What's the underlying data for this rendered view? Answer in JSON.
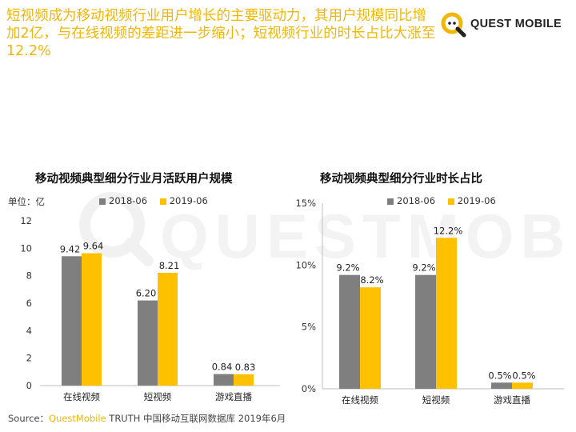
{
  "headline": "短视频成为移动视频行业用户增长的主要驱动力，其用户规模同比增加2亿，与在线视频的差距进一步缩小；短视频行业的时长占比大涨至12.2%",
  "logo": {
    "text": "QUEST MOBILE",
    "icon": "q-magnifier-logo-icon",
    "accent": "#f2b705"
  },
  "watermark": "QUESTMOBILE",
  "colors": {
    "series_2018": "#7f7f7f",
    "series_2019": "#ffc000"
  },
  "chart_data": [
    {
      "type": "bar",
      "title": "移动视频典型细分行业月活跃用户规模",
      "unit_label": "单位：亿",
      "categories": [
        "在线视频",
        "短视频",
        "游戏直播"
      ],
      "series": [
        {
          "name": "2018-06",
          "values": [
            9.42,
            6.2,
            0.84
          ],
          "labels": [
            "9.42",
            "6.20",
            "0.84"
          ]
        },
        {
          "name": "2019-06",
          "values": [
            9.64,
            8.21,
            0.83
          ],
          "labels": [
            "9.64",
            "8.21",
            "0.83"
          ]
        }
      ],
      "yticks": [
        "0",
        "2",
        "4",
        "6",
        "8",
        "10",
        "12"
      ],
      "ylim": [
        0,
        12
      ],
      "legend_position": "top"
    },
    {
      "type": "bar",
      "title": "移动视频典型细分行业时长占比",
      "categories": [
        "在线视频",
        "短视频",
        "游戏直播"
      ],
      "series": [
        {
          "name": "2018-06",
          "values": [
            9.2,
            9.2,
            0.5
          ],
          "labels": [
            "9.2%",
            "9.2%",
            "0.5%"
          ]
        },
        {
          "name": "2019-06",
          "values": [
            8.2,
            12.2,
            0.5
          ],
          "labels": [
            "8.2%",
            "12.2%",
            "0.5%"
          ]
        }
      ],
      "yticks": [
        "0%",
        "5%",
        "10%",
        "15%"
      ],
      "ylim": [
        0,
        15
      ],
      "legend_position": "top"
    }
  ],
  "source": {
    "prefix": "Source：",
    "brand": "QuestMobile",
    "rest": " TRUTH 中国移动互联网数据库 2019年6月"
  }
}
